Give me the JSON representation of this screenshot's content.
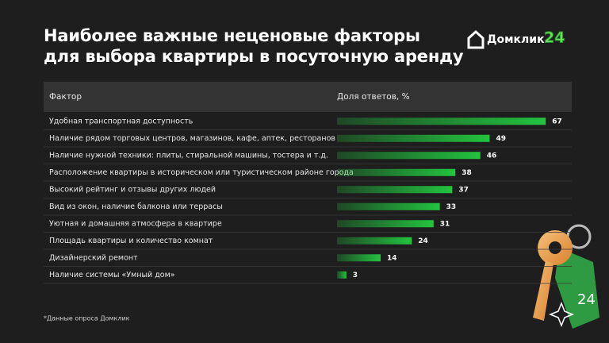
{
  "chart_data": {
    "type": "bar",
    "orientation": "horizontal",
    "title": "Наиболее важные неценовые факторы\nдля выбора квартиры в посуточную аренду",
    "column_headers": [
      "Фактор",
      "Доля ответов, %"
    ],
    "categories": [
      "Удобная транспортная доступность",
      "Наличие рядом торговых центров, магазинов, кафе, аптек, ресторанов",
      "Наличие нужной техники: плиты, стиральной машины, тостера и т.д.",
      "Расположение квартиры в историческом или туристическом районе города",
      "Высокий рейтинг и отзывы других людей",
      "Вид из окон, наличие балкона или террасы",
      "Уютная и домашняя атмосфера в квартире",
      "Площадь квартиры и количество комнат",
      "Дизайнерский ремонт",
      "Наличие системы «Умный дом»"
    ],
    "values": [
      67,
      49,
      46,
      38,
      37,
      33,
      31,
      24,
      14,
      3
    ],
    "color": "#22c43f",
    "xlim": [
      0,
      70
    ],
    "footnote": "*Данные опроса Домклик",
    "logo": {
      "text": "Домклик",
      "badge": "24"
    },
    "tag_text": "24"
  }
}
